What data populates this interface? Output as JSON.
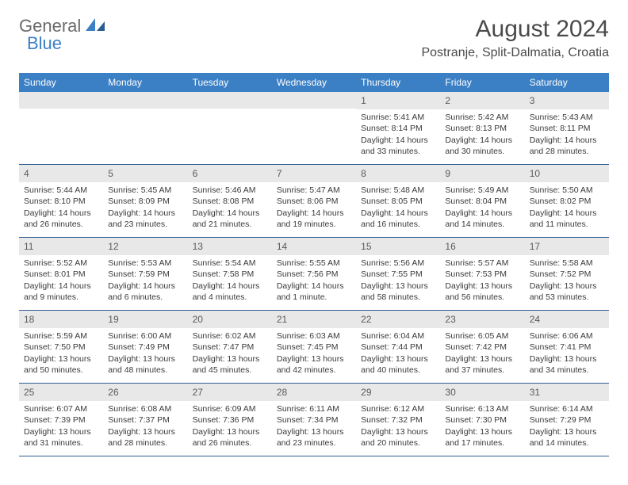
{
  "brand": {
    "part1": "General",
    "part2": "Blue"
  },
  "title": "August 2024",
  "location": "Postranje, Split-Dalmatia, Croatia",
  "colors": {
    "header_bg": "#3b7fc4",
    "header_text": "#ffffff",
    "daynum_bg": "#e8e8e8",
    "border": "#2f5d93",
    "text": "#3a3a3a"
  },
  "weekdays": [
    "Sunday",
    "Monday",
    "Tuesday",
    "Wednesday",
    "Thursday",
    "Friday",
    "Saturday"
  ],
  "leading_blanks": 4,
  "days": [
    {
      "n": "1",
      "sunrise": "5:41 AM",
      "sunset": "8:14 PM",
      "daylight": "14 hours and 33 minutes."
    },
    {
      "n": "2",
      "sunrise": "5:42 AM",
      "sunset": "8:13 PM",
      "daylight": "14 hours and 30 minutes."
    },
    {
      "n": "3",
      "sunrise": "5:43 AM",
      "sunset": "8:11 PM",
      "daylight": "14 hours and 28 minutes."
    },
    {
      "n": "4",
      "sunrise": "5:44 AM",
      "sunset": "8:10 PM",
      "daylight": "14 hours and 26 minutes."
    },
    {
      "n": "5",
      "sunrise": "5:45 AM",
      "sunset": "8:09 PM",
      "daylight": "14 hours and 23 minutes."
    },
    {
      "n": "6",
      "sunrise": "5:46 AM",
      "sunset": "8:08 PM",
      "daylight": "14 hours and 21 minutes."
    },
    {
      "n": "7",
      "sunrise": "5:47 AM",
      "sunset": "8:06 PM",
      "daylight": "14 hours and 19 minutes."
    },
    {
      "n": "8",
      "sunrise": "5:48 AM",
      "sunset": "8:05 PM",
      "daylight": "14 hours and 16 minutes."
    },
    {
      "n": "9",
      "sunrise": "5:49 AM",
      "sunset": "8:04 PM",
      "daylight": "14 hours and 14 minutes."
    },
    {
      "n": "10",
      "sunrise": "5:50 AM",
      "sunset": "8:02 PM",
      "daylight": "14 hours and 11 minutes."
    },
    {
      "n": "11",
      "sunrise": "5:52 AM",
      "sunset": "8:01 PM",
      "daylight": "14 hours and 9 minutes."
    },
    {
      "n": "12",
      "sunrise": "5:53 AM",
      "sunset": "7:59 PM",
      "daylight": "14 hours and 6 minutes."
    },
    {
      "n": "13",
      "sunrise": "5:54 AM",
      "sunset": "7:58 PM",
      "daylight": "14 hours and 4 minutes."
    },
    {
      "n": "14",
      "sunrise": "5:55 AM",
      "sunset": "7:56 PM",
      "daylight": "14 hours and 1 minute."
    },
    {
      "n": "15",
      "sunrise": "5:56 AM",
      "sunset": "7:55 PM",
      "daylight": "13 hours and 58 minutes."
    },
    {
      "n": "16",
      "sunrise": "5:57 AM",
      "sunset": "7:53 PM",
      "daylight": "13 hours and 56 minutes."
    },
    {
      "n": "17",
      "sunrise": "5:58 AM",
      "sunset": "7:52 PM",
      "daylight": "13 hours and 53 minutes."
    },
    {
      "n": "18",
      "sunrise": "5:59 AM",
      "sunset": "7:50 PM",
      "daylight": "13 hours and 50 minutes."
    },
    {
      "n": "19",
      "sunrise": "6:00 AM",
      "sunset": "7:49 PM",
      "daylight": "13 hours and 48 minutes."
    },
    {
      "n": "20",
      "sunrise": "6:02 AM",
      "sunset": "7:47 PM",
      "daylight": "13 hours and 45 minutes."
    },
    {
      "n": "21",
      "sunrise": "6:03 AM",
      "sunset": "7:45 PM",
      "daylight": "13 hours and 42 minutes."
    },
    {
      "n": "22",
      "sunrise": "6:04 AM",
      "sunset": "7:44 PM",
      "daylight": "13 hours and 40 minutes."
    },
    {
      "n": "23",
      "sunrise": "6:05 AM",
      "sunset": "7:42 PM",
      "daylight": "13 hours and 37 minutes."
    },
    {
      "n": "24",
      "sunrise": "6:06 AM",
      "sunset": "7:41 PM",
      "daylight": "13 hours and 34 minutes."
    },
    {
      "n": "25",
      "sunrise": "6:07 AM",
      "sunset": "7:39 PM",
      "daylight": "13 hours and 31 minutes."
    },
    {
      "n": "26",
      "sunrise": "6:08 AM",
      "sunset": "7:37 PM",
      "daylight": "13 hours and 28 minutes."
    },
    {
      "n": "27",
      "sunrise": "6:09 AM",
      "sunset": "7:36 PM",
      "daylight": "13 hours and 26 minutes."
    },
    {
      "n": "28",
      "sunrise": "6:11 AM",
      "sunset": "7:34 PM",
      "daylight": "13 hours and 23 minutes."
    },
    {
      "n": "29",
      "sunrise": "6:12 AM",
      "sunset": "7:32 PM",
      "daylight": "13 hours and 20 minutes."
    },
    {
      "n": "30",
      "sunrise": "6:13 AM",
      "sunset": "7:30 PM",
      "daylight": "13 hours and 17 minutes."
    },
    {
      "n": "31",
      "sunrise": "6:14 AM",
      "sunset": "7:29 PM",
      "daylight": "13 hours and 14 minutes."
    }
  ],
  "labels": {
    "sunrise": "Sunrise: ",
    "sunset": "Sunset: ",
    "daylight": "Daylight: "
  }
}
